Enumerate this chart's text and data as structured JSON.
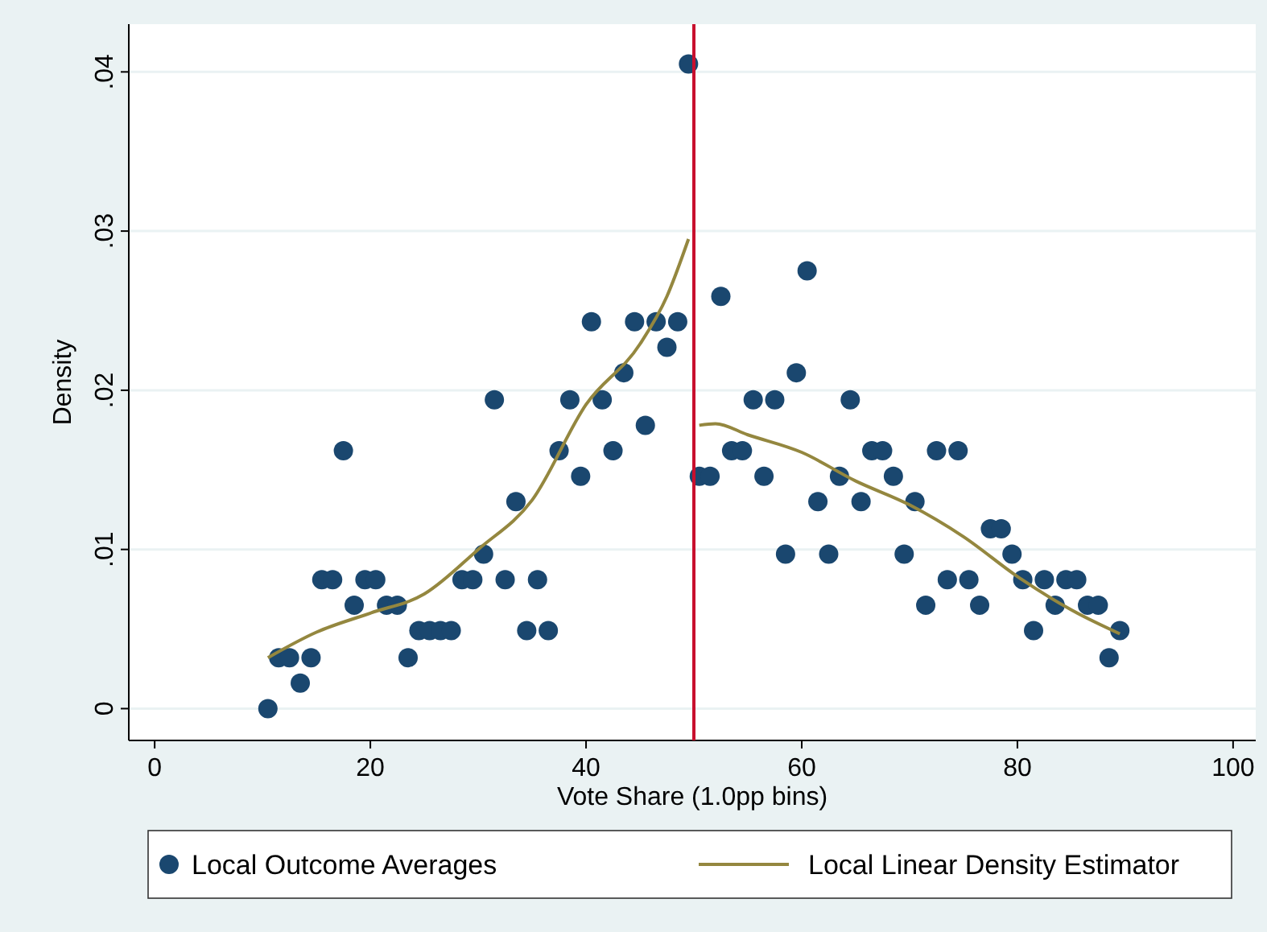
{
  "chart_data": {
    "type": "scatter",
    "xlabel": "Vote Share (1.0pp bins)",
    "ylabel": "Density",
    "xlim": [
      -2.4,
      102.1
    ],
    "ylim": [
      -0.002,
      0.043
    ],
    "xticks": [
      0,
      20,
      40,
      60,
      80,
      100
    ],
    "yticks": [
      {
        "value": 0,
        "label": "0"
      },
      {
        "value": 0.01,
        "label": ".01"
      },
      {
        "value": 0.02,
        "label": ".02"
      },
      {
        "value": 0.03,
        "label": ".03"
      },
      {
        "value": 0.04,
        "label": ".04"
      }
    ],
    "grid": "y",
    "legend": "bottom",
    "marker": "circle",
    "ref_lines": [
      {
        "axis": "x",
        "value": 50,
        "label": null,
        "color": "#c8102e"
      }
    ],
    "series": [
      {
        "name": "Local Outcome Averages",
        "color": "#1a476f",
        "x": [
          10.5,
          11.5,
          12.5,
          13.5,
          14.5,
          15.5,
          16.5,
          17.5,
          18.5,
          19.5,
          20.5,
          21.5,
          22.5,
          23.5,
          24.5,
          25.5,
          26.5,
          27.5,
          28.5,
          29.5,
          30.5,
          31.5,
          32.5,
          33.5,
          34.5,
          35.5,
          36.5,
          37.5,
          38.5,
          39.5,
          40.5,
          41.5,
          42.5,
          43.5,
          44.5,
          45.5,
          46.5,
          47.5,
          48.5,
          49.5,
          50.5,
          51.5,
          52.5,
          53.5,
          54.5,
          55.5,
          56.5,
          57.5,
          58.5,
          59.5,
          60.5,
          61.5,
          62.5,
          63.5,
          64.5,
          65.5,
          66.5,
          67.5,
          68.5,
          69.5,
          70.5,
          71.5,
          72.5,
          73.5,
          74.5,
          75.5,
          76.5,
          77.5,
          78.5,
          79.5,
          80.5,
          81.5,
          82.5,
          83.5,
          84.5,
          85.5,
          86.5,
          87.5,
          88.5,
          89.5
        ],
        "values": [
          0,
          0.0032,
          0.0032,
          0.0016,
          0.0032,
          0.0081,
          0.0081,
          0.0162,
          0.0065,
          0.0081,
          0.0081,
          0.0065,
          0.0065,
          0.0032,
          0.0049,
          0.0049,
          0.0049,
          0.0049,
          0.0081,
          0.0081,
          0.0097,
          0.0194,
          0.0081,
          0.013,
          0.0049,
          0.0081,
          0.0049,
          0.0162,
          0.0194,
          0.0146,
          0.0243,
          0.0194,
          0.0162,
          0.0211,
          0.0243,
          0.0178,
          0.0243,
          0.0227,
          0.0243,
          0.0405,
          0.0146,
          0.0146,
          0.0259,
          0.0162,
          0.0162,
          0.0194,
          0.0146,
          0.0194,
          0.0097,
          0.0211,
          0.0275,
          0.013,
          0.0097,
          0.0146,
          0.0194,
          0.013,
          0.0162,
          0.0162,
          0.0146,
          0.0097,
          0.013,
          0.0065,
          0.0162,
          0.0081,
          0.0162,
          0.0081,
          0.0065,
          0.0113,
          0.0113,
          0.0097,
          0.0081,
          0.0049,
          0.0081,
          0.0065,
          0.0081,
          0.0081,
          0.0065,
          0.0065,
          0.0032,
          0.0049
        ]
      },
      {
        "name": "Local Linear Density Estimator",
        "type": "line",
        "marker": "none",
        "color": "#94873f",
        "x": [
          10.5,
          15,
          20,
          25,
          30,
          35,
          40,
          45,
          47.5,
          49.5
        ],
        "values": [
          0.0032,
          0.0048,
          0.006,
          0.0072,
          0.01,
          0.0131,
          0.0191,
          0.0229,
          0.0259,
          0.0295
        ]
      },
      {
        "type": "line",
        "marker": "none",
        "color": "#94873f",
        "x": [
          50.5,
          52,
          55,
          60,
          65,
          70,
          75,
          80,
          85,
          89.5
        ],
        "values": [
          0.0178,
          0.0179,
          0.0172,
          0.0161,
          0.0143,
          0.0128,
          0.0108,
          0.0083,
          0.0062,
          0.0047
        ]
      }
    ]
  }
}
